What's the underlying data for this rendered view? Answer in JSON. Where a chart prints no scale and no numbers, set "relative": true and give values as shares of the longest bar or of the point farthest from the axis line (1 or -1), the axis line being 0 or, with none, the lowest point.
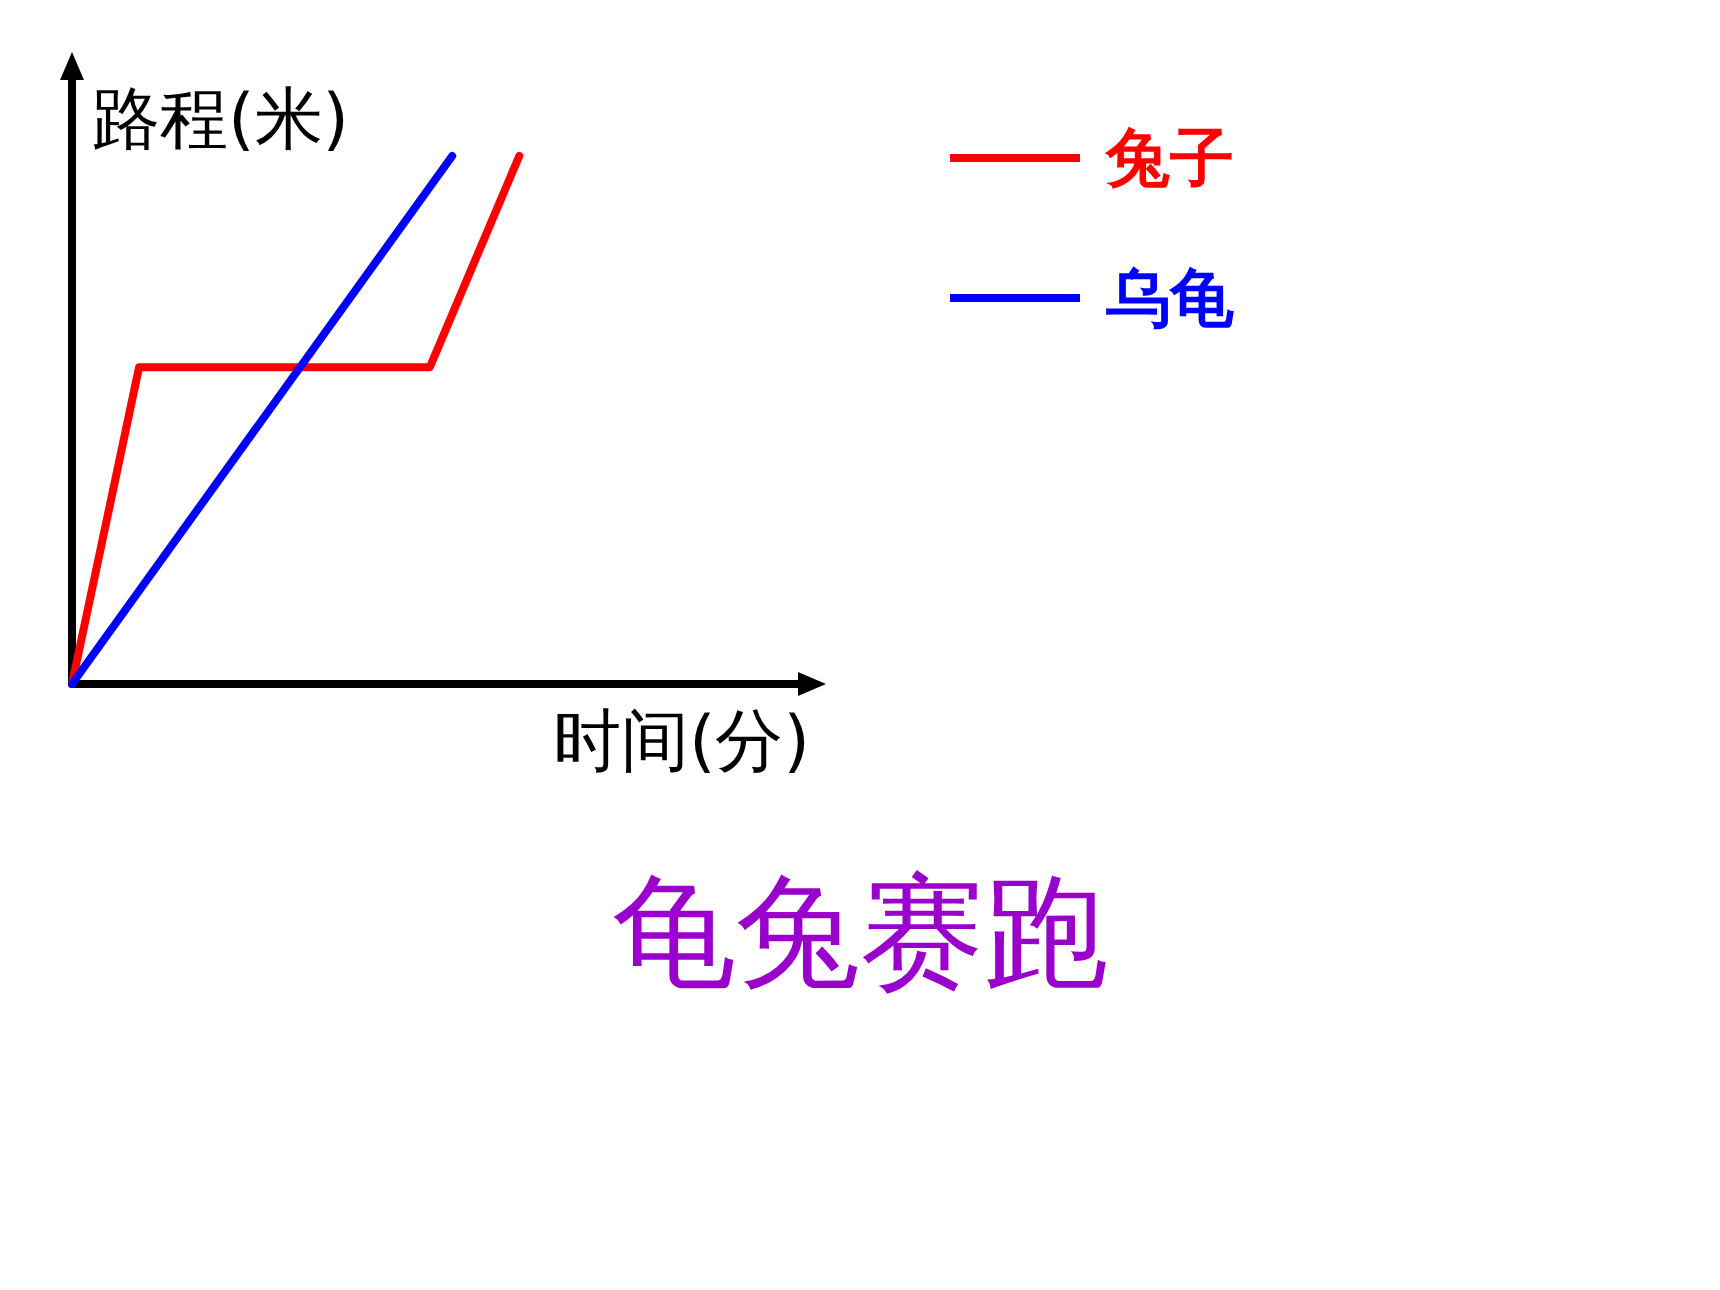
{
  "chart_data": {
    "type": "line",
    "title": "龟兔赛跑",
    "xlabel": "时间(分)",
    "ylabel": "路程(米)",
    "relative": true,
    "grid": false,
    "legend": "top right",
    "marker": "none",
    "line_style": "solid",
    "categories": [
      null,
      null,
      null,
      null,
      null,
      null,
      null,
      null,
      null,
      null,
      null,
      null,
      null,
      null,
      null,
      null,
      null,
      null,
      null,
      null,
      null,
      null,
      null,
      null,
      null,
      null,
      null,
      null,
      null,
      null,
      null,
      null,
      null,
      null
    ],
    "series": [
      {
        "name": "兔子",
        "color": "#ff0000",
        "values": [
          0,
          null,
          null,
          0.6,
          null,
          null,
          null,
          null,
          null,
          null,
          null,
          null,
          null,
          null,
          null,
          null,
          0.6,
          null,
          null,
          null,
          1,
          null,
          null,
          null,
          null,
          null,
          null,
          null,
          null,
          null,
          null,
          null,
          null,
          null
        ]
      },
      {
        "name": "乌龟",
        "color": "#0000ff",
        "values": [
          0,
          null,
          null,
          null,
          null,
          null,
          null,
          null,
          null,
          null,
          null,
          null,
          null,
          null,
          null,
          null,
          null,
          1,
          null,
          null,
          null,
          null,
          null,
          null,
          null,
          null,
          null,
          null,
          null,
          null,
          null,
          null,
          null,
          null
        ]
      }
    ]
  }
}
